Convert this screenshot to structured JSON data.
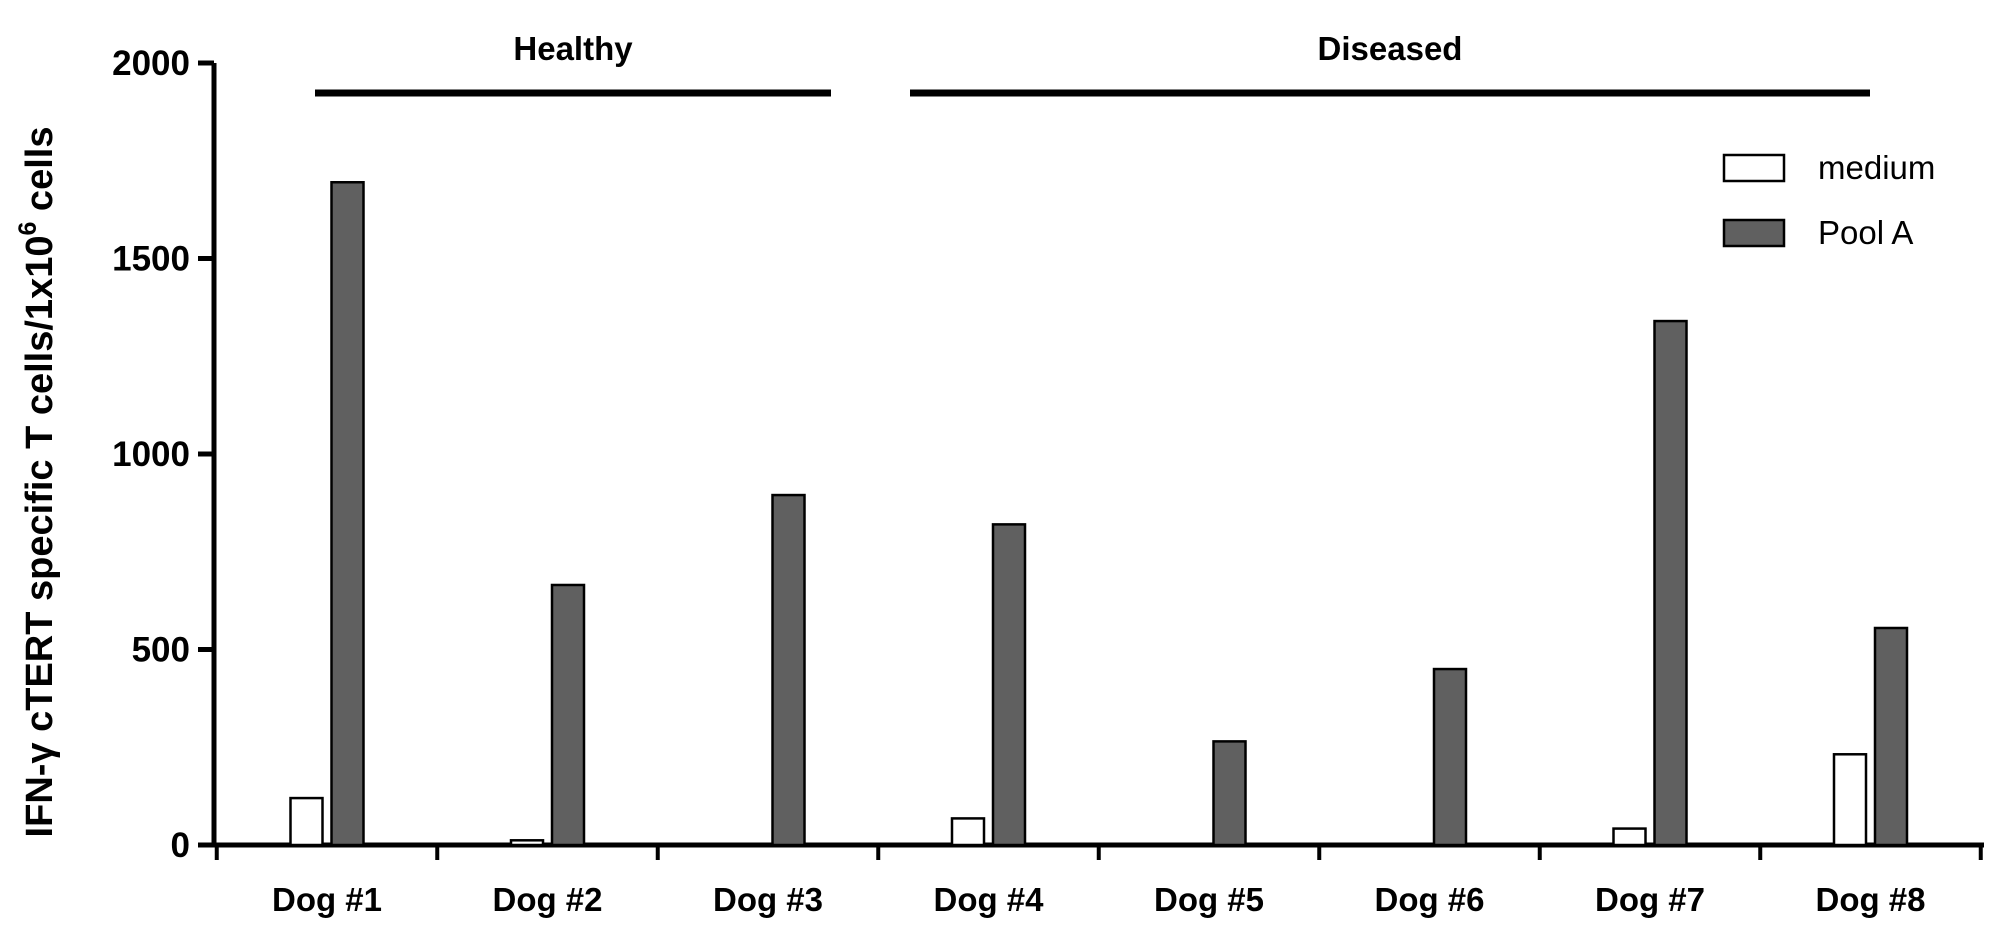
{
  "chart_data": {
    "type": "bar",
    "categories": [
      "Dog #1",
      "Dog #2",
      "Dog #3",
      "Dog #4",
      "Dog #5",
      "Dog #6",
      "Dog #7",
      "Dog #8"
    ],
    "series": [
      {
        "name": "medium",
        "color": "#ffffff",
        "values": [
          120,
          12,
          0,
          68,
          0,
          0,
          42,
          232
        ]
      },
      {
        "name": "Pool A",
        "color": "#606060",
        "values": [
          1695,
          665,
          895,
          820,
          265,
          450,
          1340,
          555
        ]
      }
    ],
    "ylabel": {
      "part1": "IFN-γ cTERT specific  T cells/1x10",
      "sup": "6",
      "part2": " cells"
    },
    "ylim": [
      0,
      2000
    ],
    "yticks": [
      0,
      500,
      1000,
      1500,
      2000
    ],
    "groups": [
      {
        "label": "Healthy",
        "from": 0,
        "to": 2
      },
      {
        "label": "Diseased",
        "from": 3,
        "to": 7
      }
    ],
    "legend_position": "top-right",
    "grid": false
  }
}
